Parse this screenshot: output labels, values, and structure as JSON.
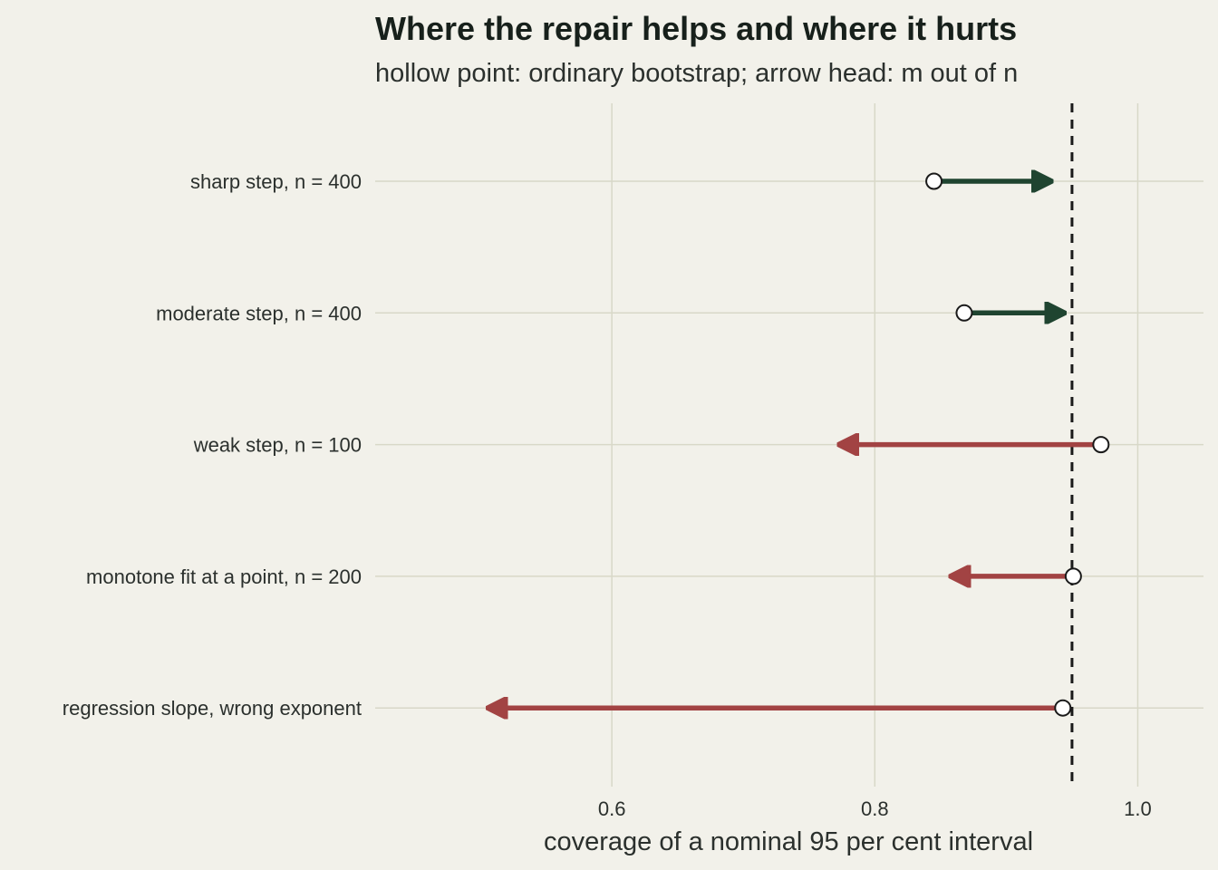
{
  "colors": {
    "background": "#f2f1ea",
    "grid": "#d8d8c8",
    "improve": "#1f4430",
    "worsen": "#a24343",
    "reference": "#1a1a1a",
    "point_fill": "#ffffff",
    "point_stroke": "#1a1a1a"
  },
  "chart_data": {
    "type": "arrow-dot",
    "title": "Where the repair helps and where it hurts",
    "subtitle": "hollow point: ordinary bootstrap; arrow head: m out of n",
    "xlabel": "coverage of a nominal 95 per cent interval",
    "xlim": [
      0.42,
      1.05
    ],
    "xticks": [
      0.6,
      0.8,
      1.0
    ],
    "xtick_labels": [
      "0.6",
      "0.8",
      "1.0"
    ],
    "reference_line": 0.95,
    "grid": true,
    "rows": [
      {
        "label": "sharp step, n = 400",
        "ordinary": 0.845,
        "m_out_of_n": 0.935
      },
      {
        "label": "moderate step, n = 400",
        "ordinary": 0.868,
        "m_out_of_n": 0.945
      },
      {
        "label": "weak step, n = 100",
        "ordinary": 0.972,
        "m_out_of_n": 0.772
      },
      {
        "label": "monotone fit at a point, n = 200",
        "ordinary": 0.951,
        "m_out_of_n": 0.857
      },
      {
        "label": "regression slope, wrong exponent",
        "ordinary": 0.943,
        "m_out_of_n": 0.505
      }
    ]
  }
}
